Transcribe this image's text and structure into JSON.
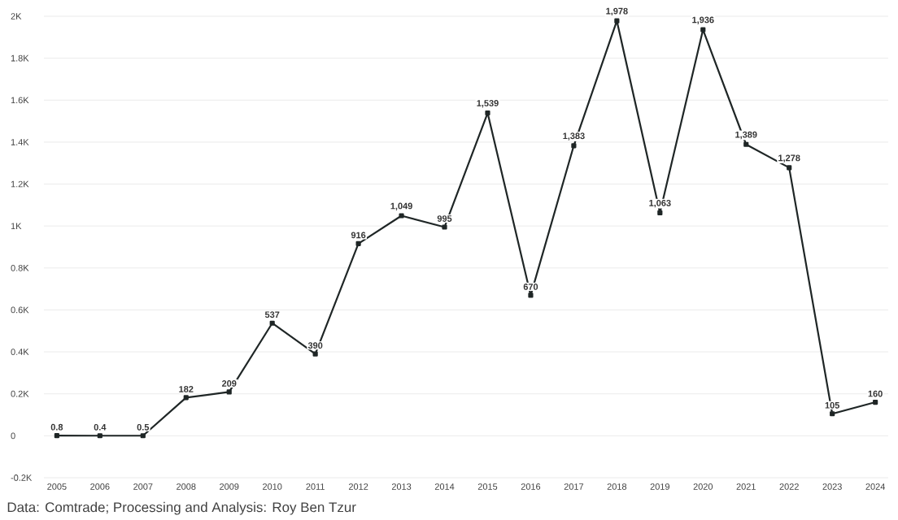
{
  "chart_data": {
    "type": "line",
    "categories": [
      "2005",
      "2006",
      "2007",
      "2008",
      "2009",
      "2010",
      "2011",
      "2012",
      "2013",
      "2014",
      "2015",
      "2016",
      "2017",
      "2018",
      "2019",
      "2020",
      "2021",
      "2022",
      "2023",
      "2024"
    ],
    "series": [
      {
        "color": "#1f2626",
        "values": [
          0.8,
          0.4,
          0.5,
          182,
          209,
          537,
          390,
          916,
          1049,
          995,
          1539,
          670,
          1383,
          1978,
          1063,
          1936,
          1389,
          1278,
          105,
          160
        ],
        "value_labels": [
          "0.8",
          "0.4",
          "0.5",
          "182",
          "209",
          "537",
          "390",
          "916",
          "1,049",
          "995",
          "1,539",
          "670",
          "1,383",
          "1,978",
          "1,063",
          "1,936",
          "1,389",
          "1,278",
          "105",
          "160"
        ]
      }
    ],
    "ylim": [
      -200,
      2000
    ],
    "yticks": [
      {
        "value": -200,
        "label": "-0.2K"
      },
      0,
      {
        "value": 200,
        "label": "0.2K"
      },
      {
        "value": 400,
        "label": "0.4K"
      },
      {
        "value": 600,
        "label": "0.6K"
      },
      {
        "value": 800,
        "label": "0.8K"
      },
      {
        "value": 1000,
        "label": "1K"
      },
      {
        "value": 1200,
        "label": "1.2K"
      },
      {
        "value": 1400,
        "label": "1.4K"
      },
      {
        "value": 1600,
        "label": "1.6K"
      },
      {
        "value": 1800,
        "label": "1.8K"
      },
      {
        "value": 2000,
        "label": "2K"
      }
    ],
    "grid": "y",
    "marker": "square",
    "line_style": "solid",
    "annotations": [
      "Data: Comtrade; Processing and Analysis: Roy Ben Tzur"
    ]
  }
}
